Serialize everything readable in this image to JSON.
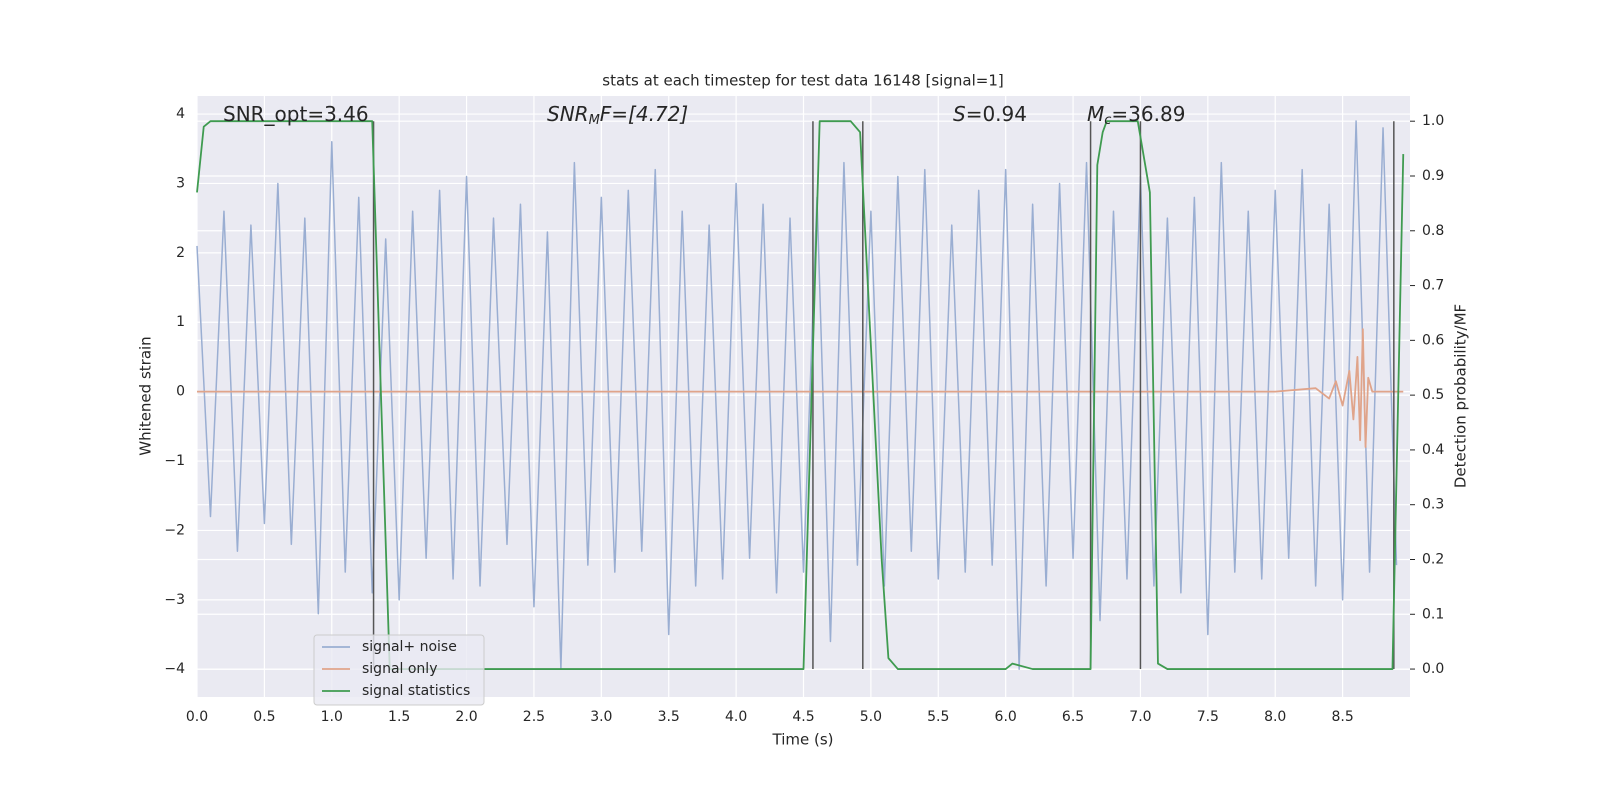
{
  "chart_data": {
    "type": "line",
    "title": "stats at each timestep for test data 16148 [signal=1]",
    "xlabel": "Time (s)",
    "ylabel": "Whitened strain",
    "y2label": "Detection probability/MF",
    "annotations": [
      {
        "main": "SNR_opt=3.46"
      },
      {
        "main": "SNR",
        "sub": "M",
        "rest": "F=[4.72]"
      },
      {
        "main": "S",
        "rest": "=0.94"
      },
      {
        "main": "M",
        "sub": "c",
        "rest": "=36.89"
      }
    ],
    "xlim": [
      0,
      9.0
    ],
    "xticks": [
      {
        "value": 0,
        "label": "0.0"
      },
      {
        "value": 0.5,
        "label": "0.5"
      },
      {
        "value": 1,
        "label": "1.0"
      },
      {
        "value": 1.5,
        "label": "1.5"
      },
      {
        "value": 2,
        "label": "2.0"
      },
      {
        "value": 2.5,
        "label": "2.5"
      },
      {
        "value": 3,
        "label": "3.0"
      },
      {
        "value": 3.5,
        "label": "3.5"
      },
      {
        "value": 4,
        "label": "4.0"
      },
      {
        "value": 4.5,
        "label": "4.5"
      },
      {
        "value": 5,
        "label": "5.0"
      },
      {
        "value": 5.5,
        "label": "5.5"
      },
      {
        "value": 6,
        "label": "6.0"
      },
      {
        "value": 6.5,
        "label": "6.5"
      },
      {
        "value": 7,
        "label": "7.0"
      },
      {
        "value": 7.5,
        "label": "7.5"
      },
      {
        "value": 8,
        "label": "8.0"
      },
      {
        "value": 8.5,
        "label": "8.5"
      }
    ],
    "ylim": [
      -4.4,
      4.26
    ],
    "yticks": [
      {
        "value": -4,
        "label": "−4"
      },
      {
        "value": -3,
        "label": "−3"
      },
      {
        "value": -2,
        "label": "−2"
      },
      {
        "value": -1,
        "label": "−1"
      },
      0,
      1,
      2,
      3,
      4
    ],
    "y2lim": [
      -0.051,
      1.046
    ],
    "y2ticks": [
      {
        "value": 0,
        "label": "0.0"
      },
      {
        "value": 0.1,
        "label": "0.1"
      },
      {
        "value": 0.2,
        "label": "0.2"
      },
      {
        "value": 0.3,
        "label": "0.3"
      },
      {
        "value": 0.4,
        "label": "0.4"
      },
      {
        "value": 0.5,
        "label": "0.5"
      },
      {
        "value": 0.6,
        "label": "0.6"
      },
      {
        "value": 0.7,
        "label": "0.7"
      },
      {
        "value": 0.8,
        "label": "0.8"
      },
      {
        "value": 0.9,
        "label": "0.9"
      },
      {
        "value": 1,
        "label": "1.0"
      }
    ],
    "grid": true,
    "legend": "lower left",
    "vlines": [
      1.31,
      4.57,
      4.94,
      6.63,
      7.0,
      8.88
    ],
    "vline_color": "#555555",
    "series": [
      {
        "name": "signal+ noise",
        "color": "#9aaed2",
        "x": [
          0.0,
          0.1,
          0.2,
          0.3,
          0.4,
          0.5,
          0.6,
          0.7,
          0.8,
          0.9,
          1.0,
          1.1,
          1.2,
          1.3,
          1.4,
          1.5,
          1.6,
          1.7,
          1.8,
          1.9,
          2.0,
          2.1,
          2.2,
          2.3,
          2.4,
          2.5,
          2.6,
          2.7,
          2.8,
          2.9,
          3.0,
          3.1,
          3.2,
          3.3,
          3.4,
          3.5,
          3.6,
          3.7,
          3.8,
          3.9,
          4.0,
          4.1,
          4.2,
          4.3,
          4.4,
          4.5,
          4.6,
          4.7,
          4.8,
          4.9,
          5.0,
          5.1,
          5.2,
          5.3,
          5.4,
          5.5,
          5.6,
          5.7,
          5.8,
          5.9,
          6.0,
          6.1,
          6.2,
          6.3,
          6.4,
          6.5,
          6.6,
          6.7,
          6.8,
          6.9,
          7.0,
          7.1,
          7.2,
          7.3,
          7.4,
          7.5,
          7.6,
          7.7,
          7.8,
          7.9,
          8.0,
          8.1,
          8.2,
          8.3,
          8.4,
          8.5,
          8.6,
          8.7,
          8.8,
          8.9
        ],
        "values": [
          2.1,
          -1.8,
          2.6,
          -2.3,
          2.4,
          -1.9,
          3.0,
          -2.2,
          2.5,
          -3.2,
          3.6,
          -2.6,
          2.8,
          -2.9,
          2.2,
          -3.0,
          2.6,
          -2.4,
          2.9,
          -2.7,
          3.1,
          -2.8,
          2.5,
          -2.2,
          2.7,
          -3.1,
          2.3,
          -4.0,
          3.3,
          -2.5,
          2.8,
          -2.6,
          2.9,
          -2.3,
          3.2,
          -3.5,
          2.6,
          -2.8,
          2.4,
          -2.7,
          3.0,
          -2.4,
          2.7,
          -2.9,
          2.5,
          -2.6,
          2.8,
          -3.6,
          3.3,
          -2.5,
          2.6,
          -2.8,
          3.1,
          -2.3,
          3.2,
          -2.7,
          2.4,
          -2.6,
          2.9,
          -2.5,
          3.2,
          -4.0,
          2.7,
          -2.8,
          3.0,
          -2.4,
          3.3,
          -3.3,
          2.6,
          -2.7,
          3.1,
          -2.8,
          2.5,
          -2.9,
          2.8,
          -3.5,
          3.3,
          -2.6,
          2.6,
          -2.7,
          2.9,
          -2.4,
          3.2,
          -2.8,
          2.7,
          -3.0,
          3.9,
          -2.6,
          3.8,
          -2.5
        ]
      },
      {
        "name": "signal only",
        "color": "#e0a48a",
        "x": [
          0,
          8.0,
          8.3,
          8.4,
          8.45,
          8.5,
          8.55,
          8.58,
          8.61,
          8.63,
          8.65,
          8.67,
          8.69,
          8.72,
          8.95
        ],
        "values": [
          0,
          0,
          0.05,
          -0.1,
          0.15,
          -0.2,
          0.3,
          -0.4,
          0.5,
          -0.7,
          0.9,
          -0.8,
          0.2,
          0,
          0
        ]
      },
      {
        "name": "signal statistics",
        "color": "#3f9b50",
        "axis": "y2",
        "x": [
          0,
          0.05,
          0.1,
          1.3,
          1.43,
          4.5,
          4.62,
          4.85,
          4.92,
          5.08,
          5.13,
          5.2,
          6.0,
          6.05,
          6.2,
          6.63,
          6.68,
          6.72,
          6.75,
          6.98,
          7.07,
          7.13,
          7.2,
          8.87,
          8.95
        ],
        "values": [
          0.87,
          0.99,
          1.0,
          1.0,
          0.0,
          0.0,
          1.0,
          1.0,
          0.98,
          0.2,
          0.02,
          0.0,
          0.0,
          0.01,
          0.0,
          0.0,
          0.92,
          0.98,
          1.0,
          1.0,
          0.87,
          0.01,
          0.0,
          0.0,
          0.94
        ]
      }
    ]
  }
}
